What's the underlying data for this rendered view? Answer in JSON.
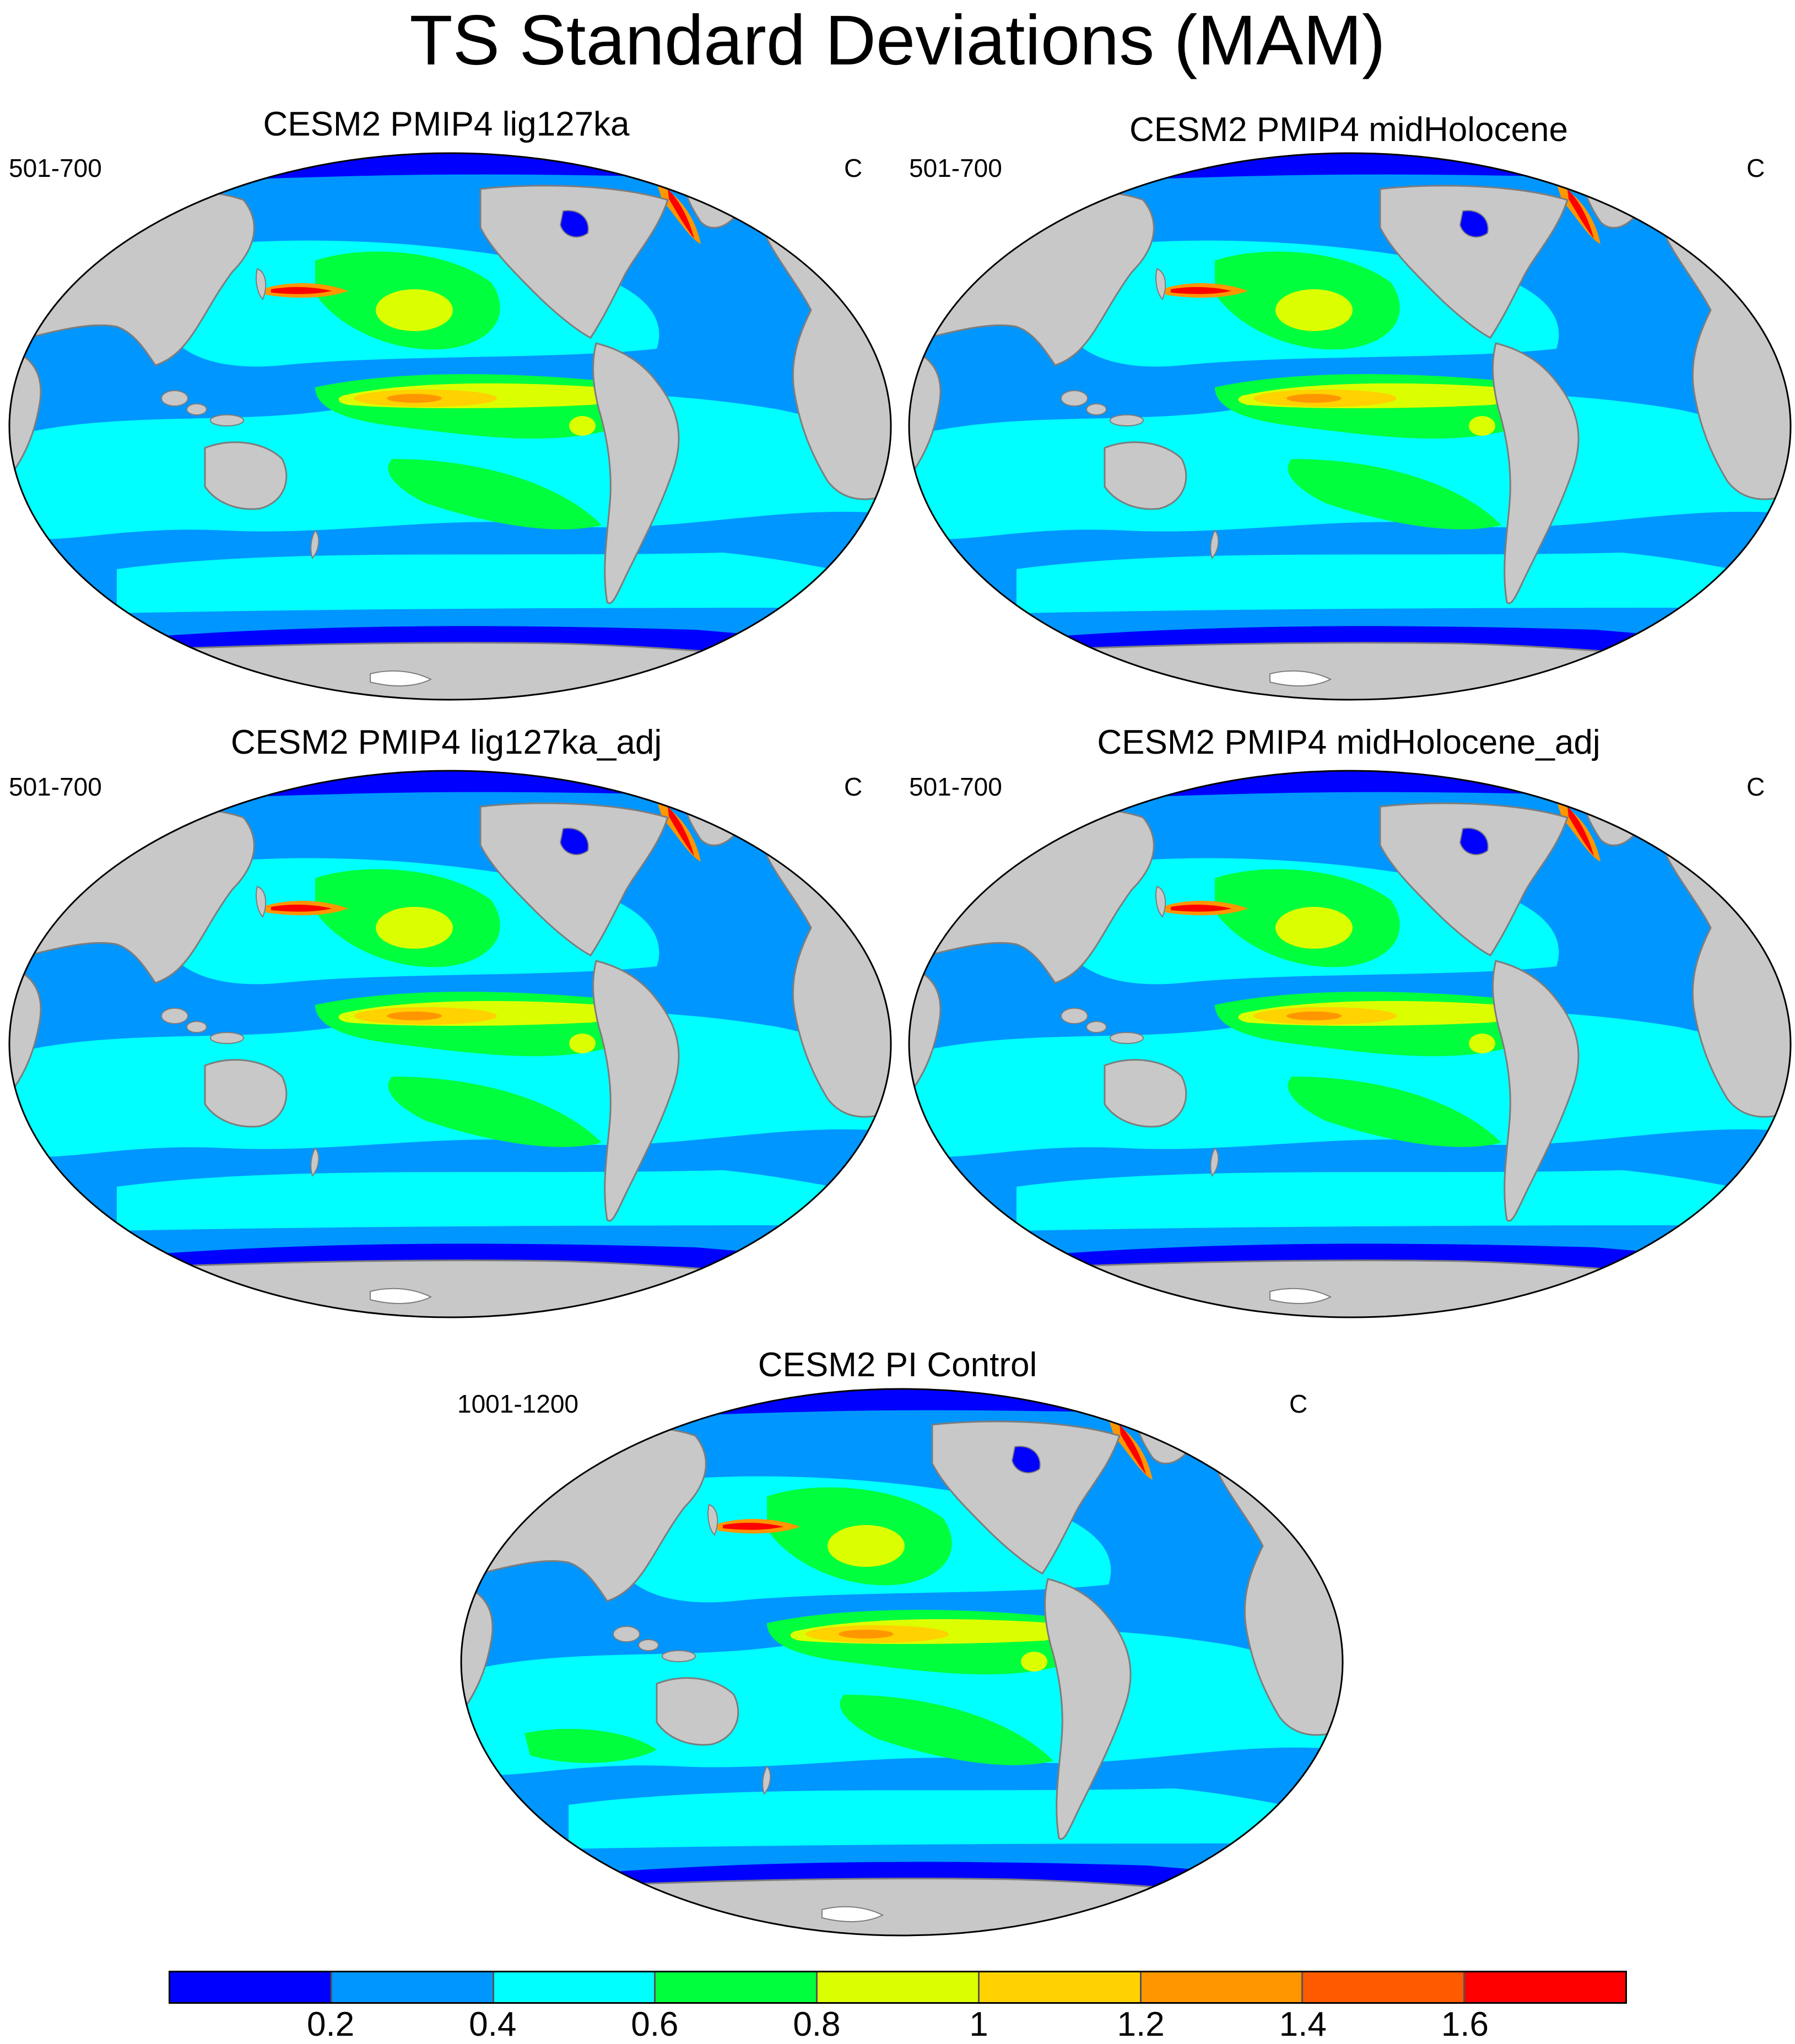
{
  "title": "TS Standard Deviations (MAM)",
  "panels": [
    {
      "title": "CESM2 PMIP4 lig127ka",
      "left_label": "501-700",
      "right_label": "C"
    },
    {
      "title": "CESM2 PMIP4 midHolocene",
      "left_label": "501-700",
      "right_label": "C"
    },
    {
      "title": "CESM2 PMIP4 lig127ka_adj",
      "left_label": "501-700",
      "right_label": "C"
    },
    {
      "title": "CESM2 PMIP4 midHolocene_adj",
      "left_label": "501-700",
      "right_label": "C"
    },
    {
      "title": "CESM2 PI Control",
      "left_label": "1001-1200",
      "right_label": "C"
    }
  ],
  "colorbar": {
    "colors": [
      "#0000ff",
      "#0096ff",
      "#00ffff",
      "#00ff3c",
      "#dcff00",
      "#ffd200",
      "#ff9600",
      "#ff5a00",
      "#ff0000"
    ],
    "labels": [
      "0.2",
      "0.4",
      "0.6",
      "0.8",
      "1",
      "1.2",
      "1.4",
      "1.6"
    ]
  },
  "map_colors": {
    "land": "#c8c8c8",
    "coast": "#7d7d7d",
    "ice": "#ffffff"
  }
}
